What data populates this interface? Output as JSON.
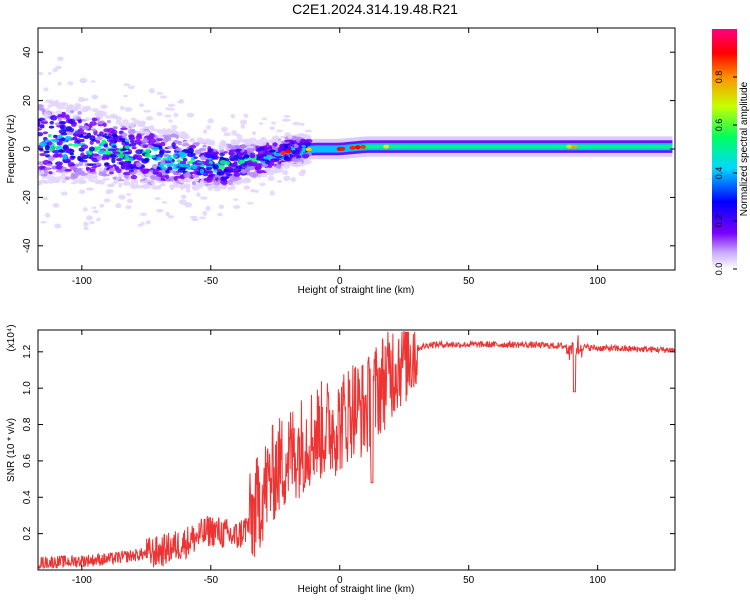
{
  "title": "C2E1.2024.314.19.48.R21",
  "chart_data": [
    {
      "type": "heatmap",
      "xlabel": "Height of straight line (km)",
      "ylabel": "Frequency (Hz)",
      "xlim": [
        -117,
        130
      ],
      "ylim": [
        -50,
        50
      ],
      "xticks": [
        -100,
        -50,
        0,
        50,
        100
      ],
      "yticks": [
        -40,
        -20,
        0,
        20,
        40
      ],
      "colorbar": {
        "label": "Normalized spectral amplitude",
        "range": [
          0,
          1
        ],
        "ticks": [
          "0.0",
          "0.2",
          "0.4",
          "0.6",
          "0.8"
        ],
        "colors": [
          "#ffffff",
          "#7a00ff",
          "#0000ff",
          "#00d8ff",
          "#00ff60",
          "#c8ff00",
          "#ff9000",
          "#ff0000",
          "#ff00a0"
        ]
      },
      "ridge": [
        {
          "x": -117,
          "y": 3
        },
        {
          "x": -100,
          "y": 2
        },
        {
          "x": -80,
          "y": -2
        },
        {
          "x": -60,
          "y": -5
        },
        {
          "x": -45,
          "y": -7
        },
        {
          "x": -38,
          "y": -5
        },
        {
          "x": -30,
          "y": -4
        },
        {
          "x": -20,
          "y": -1
        },
        {
          "x": -10,
          "y": 0
        },
        {
          "x": 0,
          "y": 0
        },
        {
          "x": 10,
          "y": 1
        },
        {
          "x": 20,
          "y": 1
        },
        {
          "x": 50,
          "y": 1
        },
        {
          "x": 90,
          "y": 1
        },
        {
          "x": 130,
          "y": 1
        }
      ]
    },
    {
      "type": "line",
      "xlabel": "Height of straight line (km)",
      "ylabel": "SNR (10 * v/v)",
      "y_multiplier": "(x10⁴)",
      "xlim": [
        -117,
        130
      ],
      "ylim": [
        0,
        1.32
      ],
      "xticks": [
        -100,
        -50,
        0,
        50,
        100
      ],
      "yticks": [
        "0.2",
        "0.4",
        "0.6",
        "0.8",
        "1.0",
        "1.2"
      ],
      "color": "#ee3333",
      "trend": [
        {
          "x": -117,
          "y": 0.04
        },
        {
          "x": -100,
          "y": 0.05
        },
        {
          "x": -90,
          "y": 0.06
        },
        {
          "x": -80,
          "y": 0.08
        },
        {
          "x": -70,
          "y": 0.1
        },
        {
          "x": -60,
          "y": 0.15
        },
        {
          "x": -50,
          "y": 0.22
        },
        {
          "x": -40,
          "y": 0.18
        },
        {
          "x": -35,
          "y": 0.25
        },
        {
          "x": -30,
          "y": 0.42
        },
        {
          "x": -25,
          "y": 0.55
        },
        {
          "x": -20,
          "y": 0.62
        },
        {
          "x": -10,
          "y": 0.75
        },
        {
          "x": 0,
          "y": 0.8
        },
        {
          "x": 5,
          "y": 0.9
        },
        {
          "x": 10,
          "y": 0.88
        },
        {
          "x": 15,
          "y": 1.0
        },
        {
          "x": 20,
          "y": 1.1
        },
        {
          "x": 25,
          "y": 1.18
        },
        {
          "x": 30,
          "y": 1.22
        },
        {
          "x": 35,
          "y": 1.24
        },
        {
          "x": 50,
          "y": 1.24
        },
        {
          "x": 70,
          "y": 1.24
        },
        {
          "x": 90,
          "y": 1.23
        },
        {
          "x": 100,
          "y": 1.22
        },
        {
          "x": 130,
          "y": 1.21
        }
      ]
    }
  ]
}
